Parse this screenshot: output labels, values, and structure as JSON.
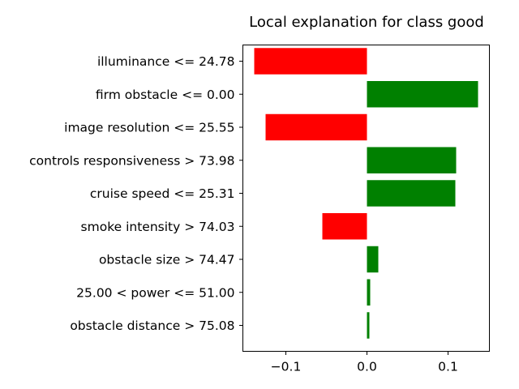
{
  "chart_data": {
    "type": "bar",
    "orientation": "horizontal",
    "title": "Local explanation for class good",
    "xlabel": "",
    "ylabel": "",
    "categories": [
      "illuminance <= 24.78",
      "firm obstacle <= 0.00",
      "image resolution <= 25.55",
      "controls responsiveness > 73.98",
      "cruise speed <= 25.31",
      "smoke intensity > 74.03",
      "obstacle size > 74.47",
      "25.00 < power <= 51.00",
      "obstacle distance > 75.08"
    ],
    "values": [
      -0.139,
      0.137,
      -0.125,
      0.11,
      0.109,
      -0.055,
      0.014,
      0.004,
      0.003
    ],
    "xlim": [
      -0.153,
      0.151
    ],
    "xticks": [
      -0.1,
      0.0,
      0.1
    ],
    "xtick_labels": [
      "−0.1",
      "0.0",
      "0.1"
    ],
    "grid": false,
    "colors": {
      "positive": "#008000",
      "negative": "#ff0000"
    }
  }
}
